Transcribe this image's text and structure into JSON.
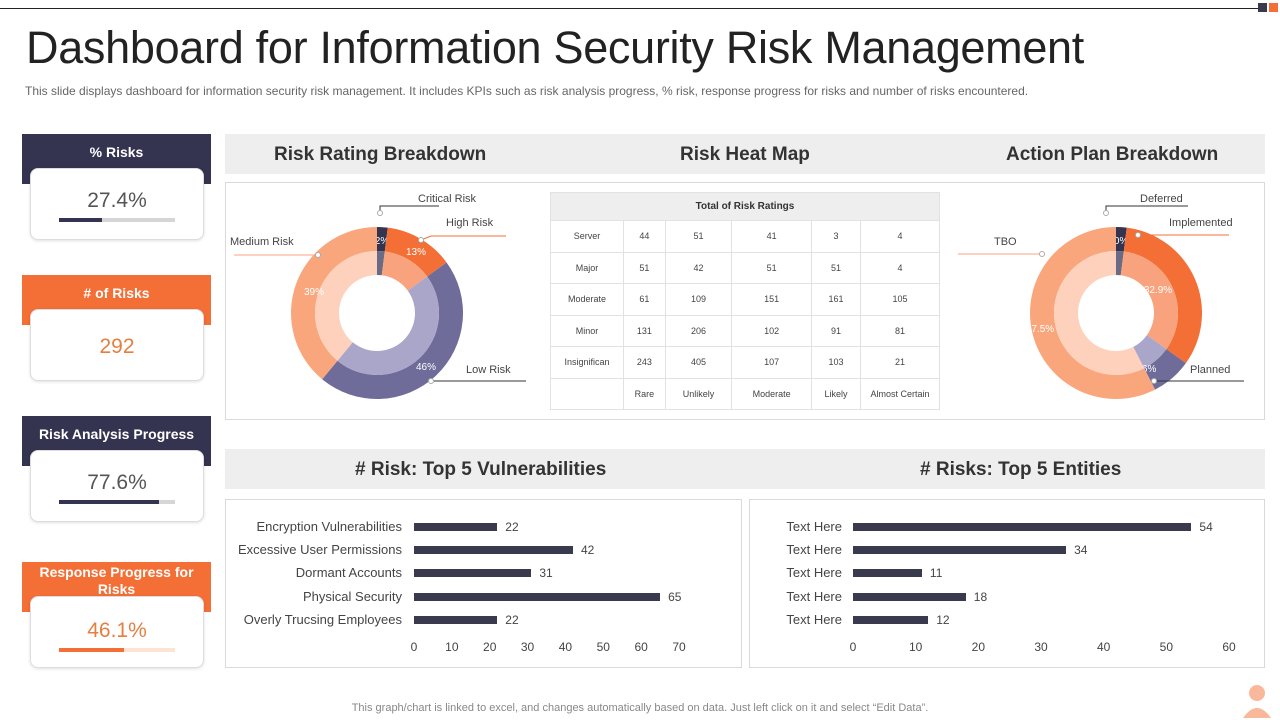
{
  "header": {
    "title": "Dashboard for Information Security Risk Management",
    "subtitle": "This slide displays dashboard for information security risk management. It includes KPIs such as risk analysis progress, % risk, response progress for risks and number of risks encountered."
  },
  "colors": {
    "navy": "#353450",
    "orange": "#f46f36",
    "medium_orange": "#f9a67c",
    "light_orange": "#fdd1bc",
    "purple": "#6f6c9a",
    "light_purple": "#a9a6c9",
    "dark": "#3a3a4e"
  },
  "kpis": [
    {
      "label": "% Risks",
      "value": "27.4%",
      "progress": 0.37,
      "color": "navy"
    },
    {
      "label": "# of Risks",
      "value": "292",
      "progress": null,
      "color": "orange"
    },
    {
      "label": "Risk Analysis Progress",
      "value": "77.6%",
      "progress": 0.858,
      "color": "navy"
    },
    {
      "label": "Response Progress for Risks",
      "value": "46.1%",
      "progress": 0.56,
      "color": "orange"
    }
  ],
  "panels": {
    "risk_rating": "Risk Rating Breakdown",
    "heat_map": "Risk Heat Map",
    "action_plan": "Action Plan Breakdown",
    "vulnerabilities": "# Risk: Top 5 Vulnerabilities",
    "entities": "# Risks: Top 5 Entities"
  },
  "heat_map": {
    "title": "Total of Risk Ratings",
    "rows": [
      {
        "label": "Server",
        "values": [
          "44",
          "51",
          "41",
          "3",
          "4"
        ]
      },
      {
        "label": "Major",
        "values": [
          "51",
          "42",
          "51",
          "51",
          "4"
        ]
      },
      {
        "label": "Moderate",
        "values": [
          "61",
          "109",
          "151",
          "161",
          "105"
        ]
      },
      {
        "label": "Minor",
        "values": [
          "131",
          "206",
          "102",
          "91",
          "81"
        ]
      },
      {
        "label": "Insignifican",
        "values": [
          "243",
          "405",
          "107",
          "103",
          "21"
        ]
      }
    ],
    "columns": [
      "Rare",
      "Unlikely",
      "Moderate",
      "Likely",
      "Almost Certain"
    ]
  },
  "footer": "This graph/chart is linked to excel, and changes automatically based on data. Just left click on it and select “Edit Data”.",
  "chart_data": [
    {
      "type": "pie",
      "title": "Risk Rating Breakdown",
      "labels": [
        "Critical Risk",
        "High Risk",
        "Low Risk",
        "Medium Risk"
      ],
      "values": [
        2,
        13,
        46,
        39
      ],
      "value_labels": [
        "2%",
        "13%",
        "46%",
        "39%"
      ],
      "colors": [
        "#353450",
        "#f46f36",
        "#6f6c9a",
        "#f9a67c"
      ],
      "inner_colors": [
        "#6b6a84",
        "#f8a37d",
        "#a9a6c9",
        "#fdd1bc"
      ]
    },
    {
      "type": "pie",
      "title": "Action Plan Breakdown",
      "labels": [
        "Deferred",
        "Implemented",
        "Planned",
        "TBO"
      ],
      "values": [
        2.0,
        32.9,
        7.6,
        57.5
      ],
      "value_labels": [
        "2.0%",
        "32.9%",
        "7.6%",
        "57.5%"
      ],
      "colors": [
        "#353450",
        "#f46f36",
        "#6f6c9a",
        "#f9a67c"
      ],
      "inner_colors": [
        "#6b6a84",
        "#f8a37d",
        "#a9a6c9",
        "#fdd1bc"
      ]
    },
    {
      "type": "bar",
      "title": "# Risk: Top 5 Vulnerabilities",
      "categories": [
        "Encryption Vulnerabilities",
        "Excessive User Permissions",
        "Dormant Accounts",
        "Physical Security",
        "Overly Trucsing Employees"
      ],
      "values": [
        22,
        42,
        31,
        65,
        22
      ],
      "xlim": [
        0,
        70
      ],
      "xticks": [
        "0",
        "10",
        "20",
        "30",
        "40",
        "50",
        "60",
        "70"
      ]
    },
    {
      "type": "bar",
      "title": "# Risks: Top 5 Entities",
      "categories": [
        "Text Here",
        "Text Here",
        "Text Here",
        "Text Here",
        "Text Here"
      ],
      "values": [
        54,
        34,
        11,
        18,
        12
      ],
      "xlim": [
        0,
        60
      ],
      "xticks": [
        "0",
        "10",
        "20",
        "30",
        "40",
        "50",
        "60"
      ]
    }
  ]
}
